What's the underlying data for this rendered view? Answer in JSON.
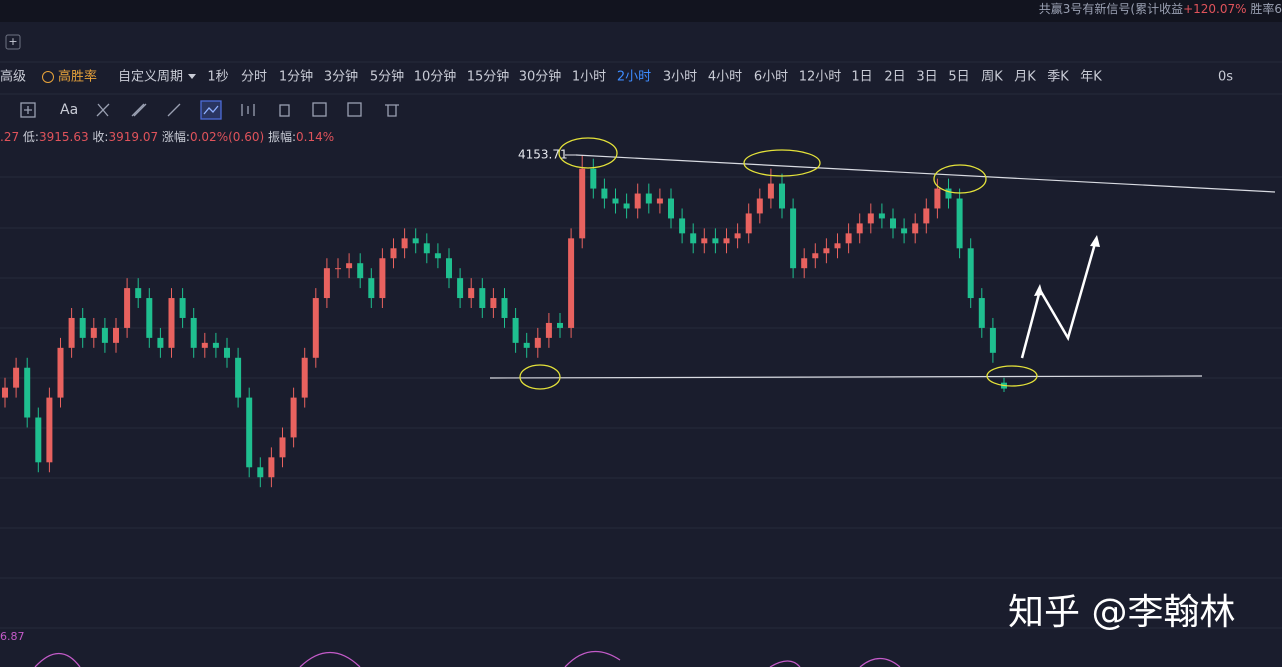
{
  "header": {
    "signal": "共赢3号有新信号(累计收益",
    "gain": "+120.07%",
    "rate": "胜率6"
  },
  "toolbar": {
    "advanced": "高级",
    "high_win": "高胜率",
    "custom": "自定义周期",
    "periods": [
      "1秒",
      "分时",
      "1分钟",
      "3分钟",
      "5分钟",
      "10分钟",
      "15分钟",
      "30分钟",
      "1小时",
      "2小时",
      "3小时",
      "4小时",
      "6小时",
      "12小时",
      "1日",
      "2日",
      "3日",
      "5日",
      "周K",
      "月K",
      "季K",
      "年K"
    ],
    "active_period": 9,
    "timer": "0s"
  },
  "info": {
    "partial": ".27",
    "low_label": "低:",
    "close_label": "收:",
    "change_label": "涨幅:",
    "change": "0.02%(0.60)",
    "amp_label": "振幅:",
    "amp": "0.14%"
  },
  "indicator": {
    "value": "6.87"
  },
  "watermark": "知乎 @李翰林",
  "candles": [
    [
      3910,
      3930,
      3900,
      3920
    ],
    [
      3920,
      3950,
      3910,
      3940
    ],
    [
      3940,
      3950,
      3880,
      3890
    ],
    [
      3890,
      3900,
      3835,
      3845
    ],
    [
      3845,
      3920,
      3835,
      3910
    ],
    [
      3910,
      3970,
      3900,
      3960
    ],
    [
      3960,
      4000,
      3950,
      3990
    ],
    [
      3990,
      4000,
      3960,
      3970
    ],
    [
      3970,
      3990,
      3960,
      3980
    ],
    [
      3980,
      3990,
      3955,
      3965
    ],
    [
      3965,
      3990,
      3955,
      3980
    ],
    [
      3980,
      4030,
      3970,
      4020
    ],
    [
      4020,
      4030,
      4000,
      4010
    ],
    [
      4010,
      4020,
      3960,
      3970
    ],
    [
      3970,
      3980,
      3950,
      3960
    ],
    [
      3960,
      4020,
      3950,
      4010
    ],
    [
      4010,
      4020,
      3980,
      3990
    ],
    [
      3990,
      4000,
      3950,
      3960
    ],
    [
      3960,
      3975,
      3950,
      3965
    ],
    [
      3965,
      3975,
      3950,
      3960
    ],
    [
      3960,
      3970,
      3940,
      3950
    ],
    [
      3950,
      3960,
      3900,
      3910
    ],
    [
      3910,
      3920,
      3830,
      3840
    ],
    [
      3840,
      3850,
      3820,
      3830
    ],
    [
      3830,
      3860,
      3820,
      3850
    ],
    [
      3850,
      3880,
      3840,
      3870
    ],
    [
      3870,
      3920,
      3860,
      3910
    ],
    [
      3910,
      3960,
      3900,
      3950
    ],
    [
      3950,
      4020,
      3940,
      4010
    ],
    [
      4010,
      4050,
      4000,
      4040
    ],
    [
      4040,
      4050,
      4030,
      4040
    ],
    [
      4040,
      4055,
      4030,
      4045
    ],
    [
      4045,
      4055,
      4020,
      4030
    ],
    [
      4030,
      4040,
      4000,
      4010
    ],
    [
      4010,
      4060,
      4000,
      4050
    ],
    [
      4050,
      4070,
      4040,
      4060
    ],
    [
      4060,
      4080,
      4050,
      4070
    ],
    [
      4070,
      4080,
      4055,
      4065
    ],
    [
      4065,
      4075,
      4045,
      4055
    ],
    [
      4055,
      4065,
      4040,
      4050
    ],
    [
      4050,
      4060,
      4020,
      4030
    ],
    [
      4030,
      4040,
      4000,
      4010
    ],
    [
      4010,
      4030,
      4000,
      4020
    ],
    [
      4020,
      4030,
      3990,
      4000
    ],
    [
      4000,
      4020,
      3990,
      4010
    ],
    [
      4010,
      4020,
      3980,
      3990
    ],
    [
      3990,
      4000,
      3955,
      3965
    ],
    [
      3965,
      3975,
      3950,
      3960
    ],
    [
      3960,
      3980,
      3950,
      3970
    ],
    [
      3970,
      3995,
      3960,
      3985
    ],
    [
      3985,
      3995,
      3970,
      3980
    ],
    [
      3980,
      4080,
      3970,
      4070
    ],
    [
      4070,
      4153.71,
      4060,
      4140
    ],
    [
      4140,
      4150,
      4110,
      4120
    ],
    [
      4120,
      4130,
      4100,
      4110
    ],
    [
      4110,
      4120,
      4095,
      4105
    ],
    [
      4105,
      4115,
      4090,
      4100
    ],
    [
      4100,
      4125,
      4090,
      4115
    ],
    [
      4115,
      4125,
      4095,
      4105
    ],
    [
      4105,
      4120,
      4095,
      4110
    ],
    [
      4110,
      4120,
      4080,
      4090
    ],
    [
      4090,
      4100,
      4065,
      4075
    ],
    [
      4075,
      4085,
      4055,
      4065
    ],
    [
      4065,
      4080,
      4055,
      4070
    ],
    [
      4070,
      4080,
      4055,
      4065
    ],
    [
      4065,
      4080,
      4055,
      4070
    ],
    [
      4070,
      4085,
      4060,
      4075
    ],
    [
      4075,
      4105,
      4065,
      4095
    ],
    [
      4095,
      4120,
      4085,
      4110
    ],
    [
      4110,
      4140,
      4100,
      4125
    ],
    [
      4125,
      4135,
      4090,
      4100
    ],
    [
      4100,
      4110,
      4030,
      4040
    ],
    [
      4040,
      4060,
      4030,
      4050
    ],
    [
      4050,
      4065,
      4040,
      4055
    ],
    [
      4055,
      4070,
      4045,
      4060
    ],
    [
      4060,
      4075,
      4050,
      4065
    ],
    [
      4065,
      4085,
      4055,
      4075
    ],
    [
      4075,
      4095,
      4065,
      4085
    ],
    [
      4085,
      4105,
      4075,
      4095
    ],
    [
      4095,
      4105,
      4080,
      4090
    ],
    [
      4090,
      4100,
      4070,
      4080
    ],
    [
      4080,
      4090,
      4065,
      4075
    ],
    [
      4075,
      4095,
      4065,
      4085
    ],
    [
      4085,
      4110,
      4075,
      4100
    ],
    [
      4100,
      4130,
      4090,
      4120
    ],
    [
      4120,
      4130,
      4100,
      4110
    ],
    [
      4110,
      4120,
      4050,
      4060
    ],
    [
      4060,
      4070,
      4000,
      4010
    ],
    [
      4010,
      4020,
      3970,
      3980
    ],
    [
      3980,
      3990,
      3945,
      3955
    ],
    [
      3925,
      3930,
      3915.63,
      3919.07
    ]
  ]
}
